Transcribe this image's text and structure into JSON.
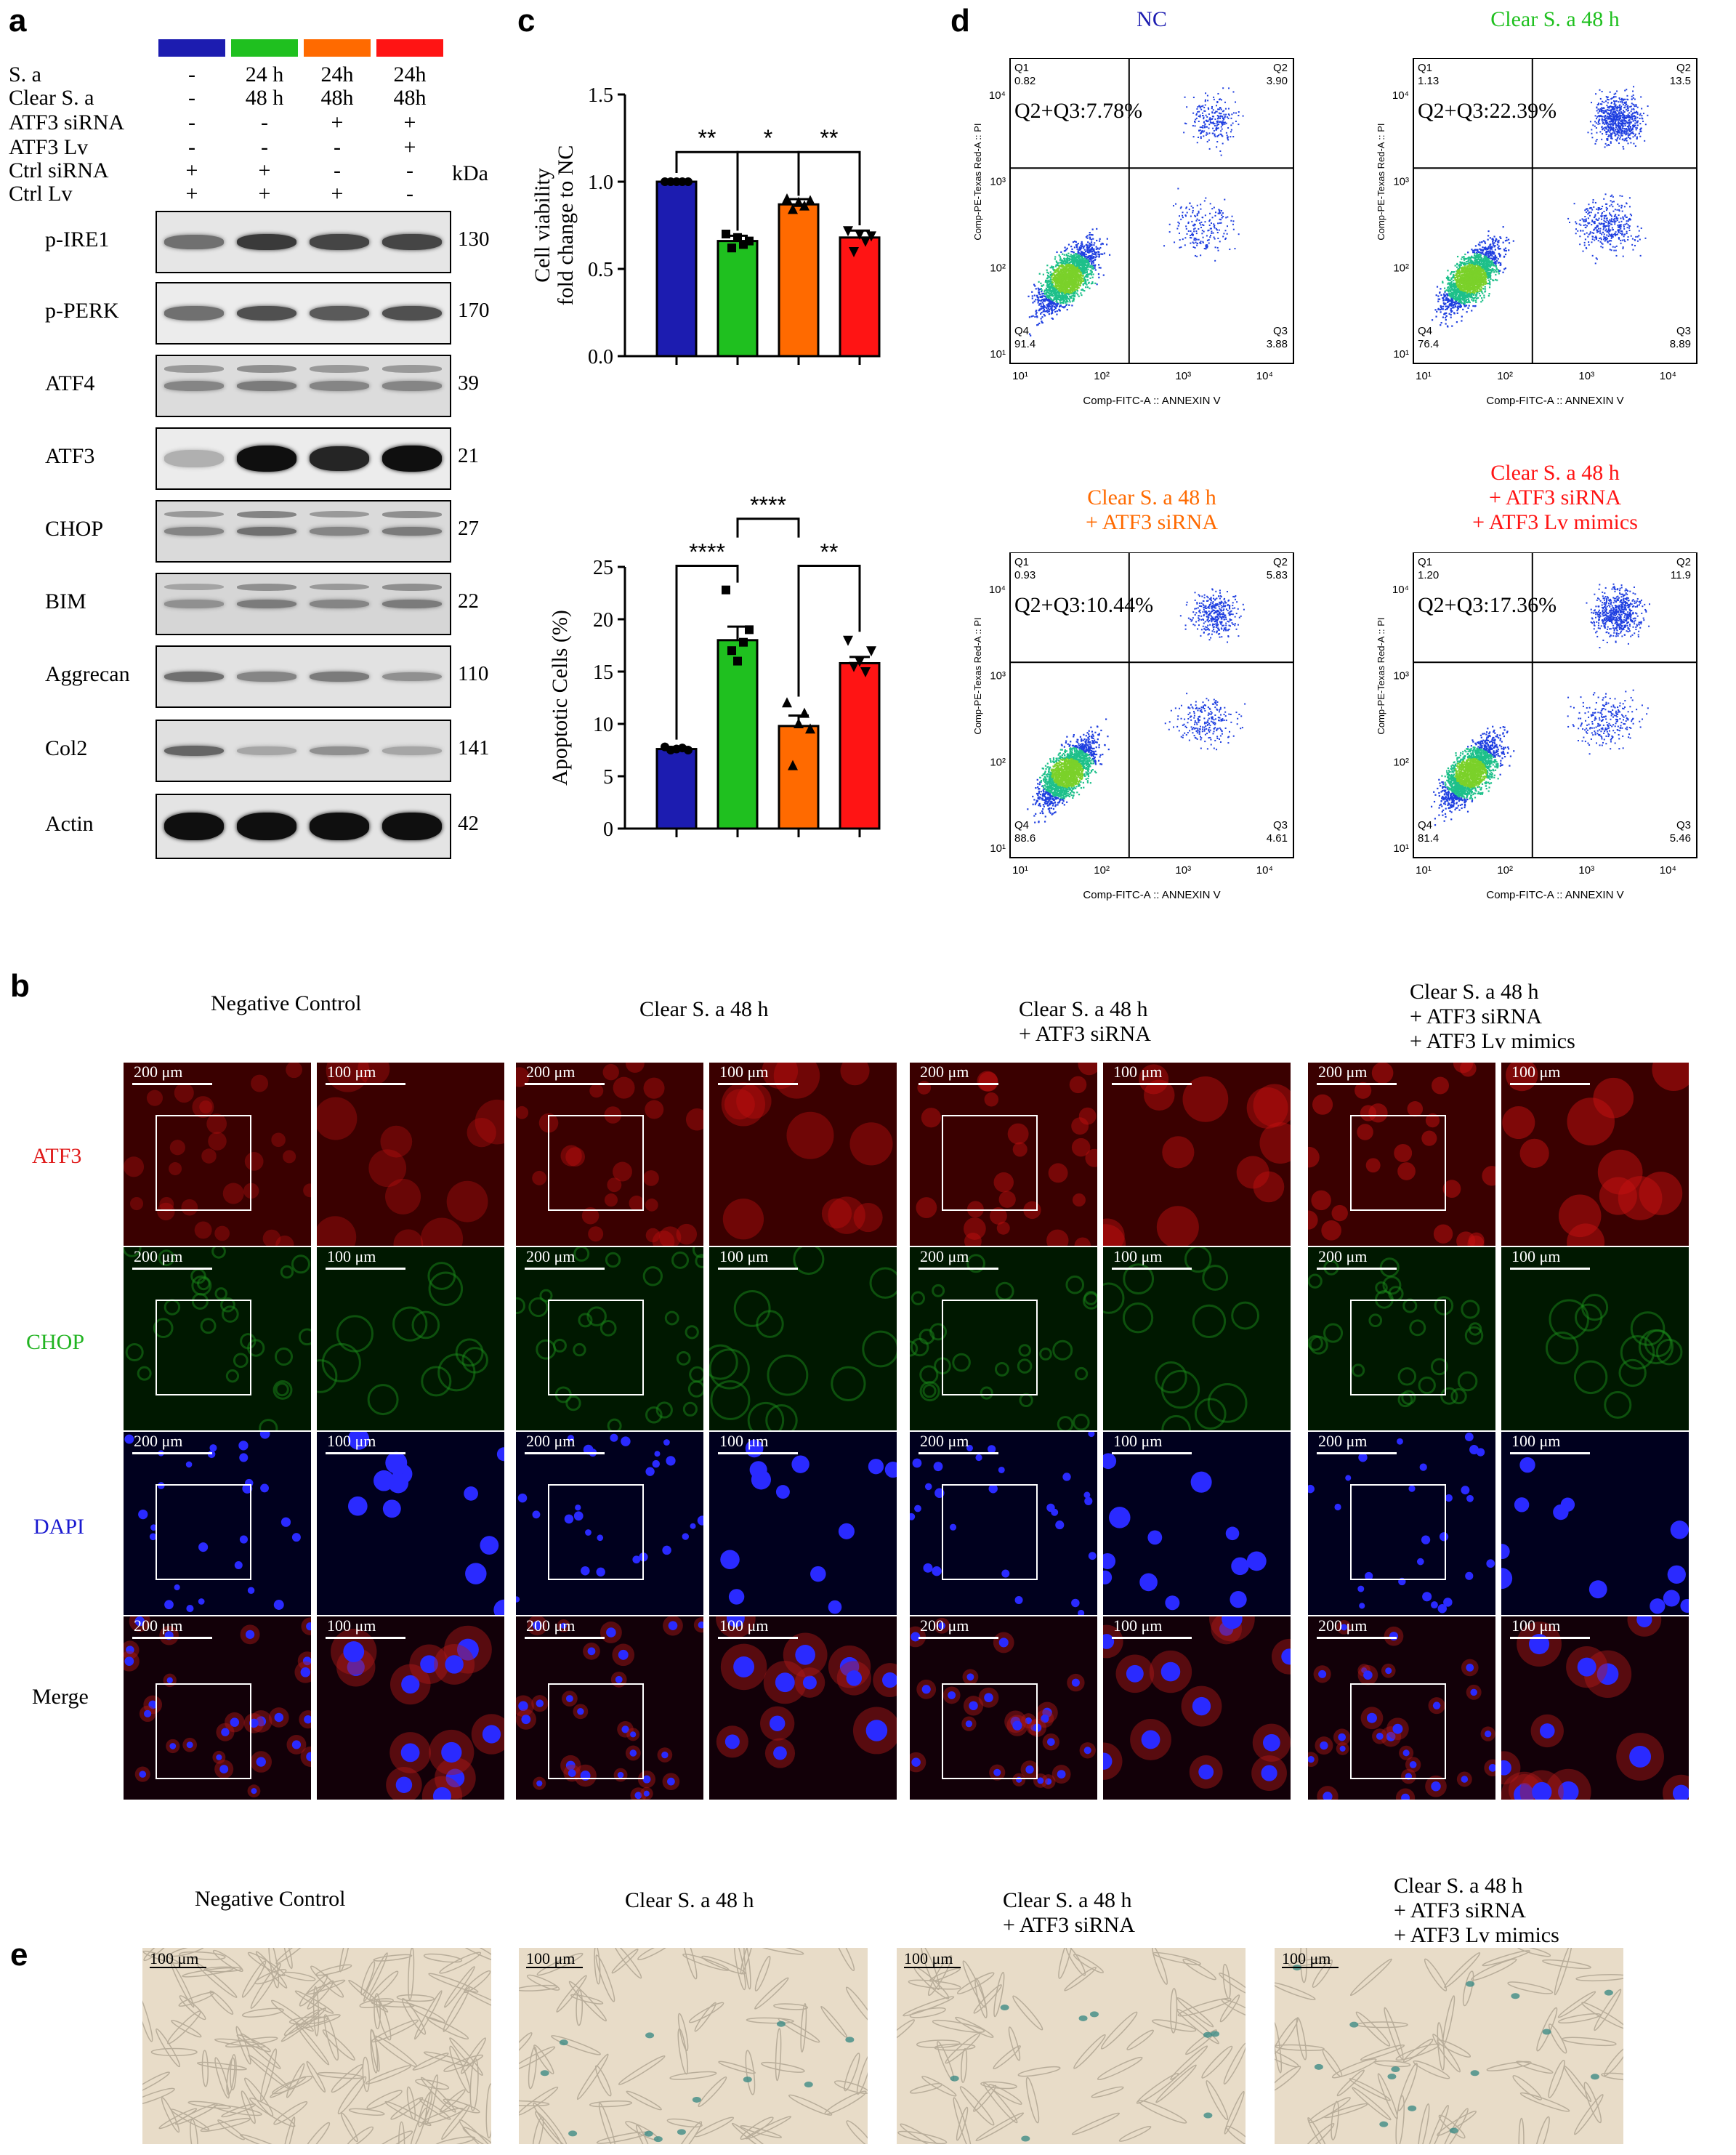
{
  "panel_labels": {
    "a": "a",
    "b": "b",
    "c": "c",
    "d": "d",
    "e": "e"
  },
  "group_colors": [
    "#1c1cb0",
    "#1fc01f",
    "#ff6a00",
    "#ff1414"
  ],
  "panel_a": {
    "rows": [
      {
        "label": "S. a",
        "values": [
          "-",
          "24 h",
          "24h",
          "24h"
        ]
      },
      {
        "label": "Clear S. a",
        "values": [
          "-",
          "48 h",
          "48h",
          "48h"
        ]
      },
      {
        "label": "ATF3 siRNA",
        "values": [
          "-",
          "-",
          "+",
          "+"
        ]
      },
      {
        "label": "ATF3 Lv",
        "values": [
          "-",
          "-",
          "-",
          "+"
        ]
      },
      {
        "label": "Ctrl siRNA",
        "values": [
          "+",
          "+",
          "-",
          "-"
        ]
      },
      {
        "label": "Ctrl Lv",
        "values": [
          "+",
          "+",
          "+",
          "-"
        ]
      }
    ],
    "kda_header": "kDa",
    "blots": [
      {
        "name": "p-IRE1",
        "kda": "130",
        "bg": "#e6e6e6",
        "intensity": [
          0.55,
          0.8,
          0.75,
          0.75
        ],
        "thick": 22
      },
      {
        "name": "p-PERK",
        "kda": "170",
        "bg": "#ececec",
        "intensity": [
          0.55,
          0.7,
          0.65,
          0.7
        ],
        "thick": 22
      },
      {
        "name": "ATF4",
        "kda": "39",
        "bg": "#dcdcdc",
        "intensity": [
          0.45,
          0.5,
          0.45,
          0.45
        ],
        "thick": 16
      },
      {
        "name": "ATF3",
        "kda": "21",
        "bg": "#ececec",
        "intensity": [
          0.25,
          1.0,
          0.9,
          1.0
        ],
        "thick": 32
      },
      {
        "name": "CHOP",
        "kda": "27",
        "bg": "#dadada",
        "intensity": [
          0.45,
          0.55,
          0.45,
          0.5
        ],
        "thick": 14
      },
      {
        "name": "BIM",
        "kda": "22",
        "bg": "#d6d6d6",
        "intensity": [
          0.4,
          0.5,
          0.45,
          0.5
        ],
        "thick": 14
      },
      {
        "name": "Aggrecan",
        "kda": "110",
        "bg": "#e2e2e2",
        "intensity": [
          0.55,
          0.45,
          0.5,
          0.4
        ],
        "thick": 16
      },
      {
        "name": "Col2",
        "kda": "141",
        "bg": "#e0e0e0",
        "intensity": [
          0.6,
          0.3,
          0.4,
          0.3
        ],
        "thick": 16
      },
      {
        "name": "Actin",
        "kda": "42",
        "bg": "#e4e4e4",
        "intensity": [
          1.0,
          1.0,
          1.0,
          1.0
        ],
        "thick": 34
      }
    ]
  },
  "chart_data": [
    {
      "type": "bar",
      "ylabel_line1": "Cell viability",
      "ylabel_line2": "fold change to NC",
      "ylim": [
        0,
        1.5
      ],
      "yticks": [
        "0.0",
        "0.5",
        "1.0",
        "1.5"
      ],
      "values": [
        1.0,
        0.66,
        0.87,
        0.68
      ],
      "errors": [
        0.0,
        0.03,
        0.03,
        0.04
      ],
      "points": [
        [
          1.0,
          1.0,
          1.0,
          1.0,
          1.0
        ],
        [
          0.7,
          0.62,
          0.68,
          0.64,
          0.66
        ],
        [
          0.9,
          0.84,
          0.88,
          0.86,
          0.89
        ],
        [
          0.72,
          0.6,
          0.7,
          0.66,
          0.69
        ]
      ],
      "markers": [
        "circle",
        "square",
        "triangle",
        "triangle-down"
      ],
      "significance": [
        {
          "from": 0,
          "to": 1,
          "label": "**"
        },
        {
          "from": 1,
          "to": 2,
          "label": "*"
        },
        {
          "from": 2,
          "to": 3,
          "label": "**"
        }
      ]
    },
    {
      "type": "bar",
      "ylabel": "Apoptotic Cells (%)",
      "ylim": [
        0,
        25
      ],
      "yticks": [
        "0",
        "5",
        "10",
        "15",
        "20",
        "25"
      ],
      "values": [
        7.6,
        18.0,
        9.8,
        15.8
      ],
      "errors": [
        0.2,
        1.3,
        1.0,
        0.6
      ],
      "points": [
        [
          7.8,
          7.5,
          7.6,
          7.7,
          7.5
        ],
        [
          22.8,
          17.0,
          16.0,
          17.8,
          19.0
        ],
        [
          12.0,
          6.0,
          10.0,
          11.0,
          9.5
        ],
        [
          18.0,
          15.5,
          16.0,
          15.0,
          17.0
        ]
      ],
      "markers": [
        "circle",
        "square",
        "triangle",
        "triangle-down"
      ],
      "significance": [
        {
          "from": 0,
          "to": 1,
          "label": "****"
        },
        {
          "from": 1,
          "to": 2,
          "label": "****"
        },
        {
          "from": 2,
          "to": 3,
          "label": "**"
        }
      ]
    }
  ],
  "panel_d": {
    "plots": [
      {
        "title_lines": [
          "NC"
        ],
        "title_color": "#1c1cb0",
        "sum": "Q2+Q3:7.78%",
        "q1": "0.82",
        "q2": "3.90",
        "q3": "3.88",
        "q4": "91.4"
      },
      {
        "title_lines": [
          "Clear S. a  48 h"
        ],
        "title_color": "#1fc01f",
        "sum": "Q2+Q3:22.39%",
        "q1": "1.13",
        "q2": "13.5",
        "q3": "8.89",
        "q4": "76.4"
      },
      {
        "title_lines": [
          "Clear S. a 48 h",
          "+ ATF3 siRNA"
        ],
        "title_color": "#ff6a00",
        "sum": "Q2+Q3:10.44%",
        "q1": "0.93",
        "q2": "5.83",
        "q3": "4.61",
        "q4": "88.6"
      },
      {
        "title_lines": [
          "Clear S. a 48 h",
          "+ ATF3 siRNA",
          "+ ATF3 Lv mimics"
        ],
        "title_color": "#ff1414",
        "sum": "Q2+Q3:17.36%",
        "q1": "1.20",
        "q2": "11.9",
        "q3": "5.46",
        "q4": "81.4"
      }
    ],
    "q_names": [
      "Q1",
      "Q2",
      "Q3",
      "Q4"
    ],
    "xaxis": "Comp-FITC-A :: ANNEXIN V",
    "yaxis": "Comp-PE-Texas Red-A :: PI",
    "ticks": [
      "10¹",
      "10²",
      "10³",
      "10⁴"
    ]
  },
  "panel_b": {
    "groups": [
      {
        "lines": [
          "Negative Control"
        ]
      },
      {
        "lines": [
          "Clear S. a 48 h"
        ]
      },
      {
        "lines": [
          "Clear S. a 48 h",
          "+ ATF3 siRNA"
        ]
      },
      {
        "lines": [
          "Clear S. a 48 h",
          "+ ATF3 siRNA",
          "+ ATF3 Lv mimics"
        ]
      }
    ],
    "rows": [
      {
        "label": "ATF3",
        "color": "#e01a1a"
      },
      {
        "label": "CHOP",
        "color": "#22b422"
      },
      {
        "label": "DAPI",
        "color": "#1a1ad0"
      },
      {
        "label": "Merge",
        "color": "#000000"
      }
    ],
    "scale_low": "200 μm",
    "scale_high": "100 μm"
  },
  "panel_e": {
    "groups": [
      {
        "lines": [
          "Negative Control"
        ]
      },
      {
        "lines": [
          "Clear S. a 48 h"
        ]
      },
      {
        "lines": [
          "Clear S. a 48 h",
          "+ ATF3 siRNA"
        ]
      },
      {
        "lines": [
          "Clear S. a 48 h",
          "+ ATF3 siRNA",
          "+ ATF3 Lv mimics"
        ]
      }
    ],
    "scale": "100 μm"
  }
}
